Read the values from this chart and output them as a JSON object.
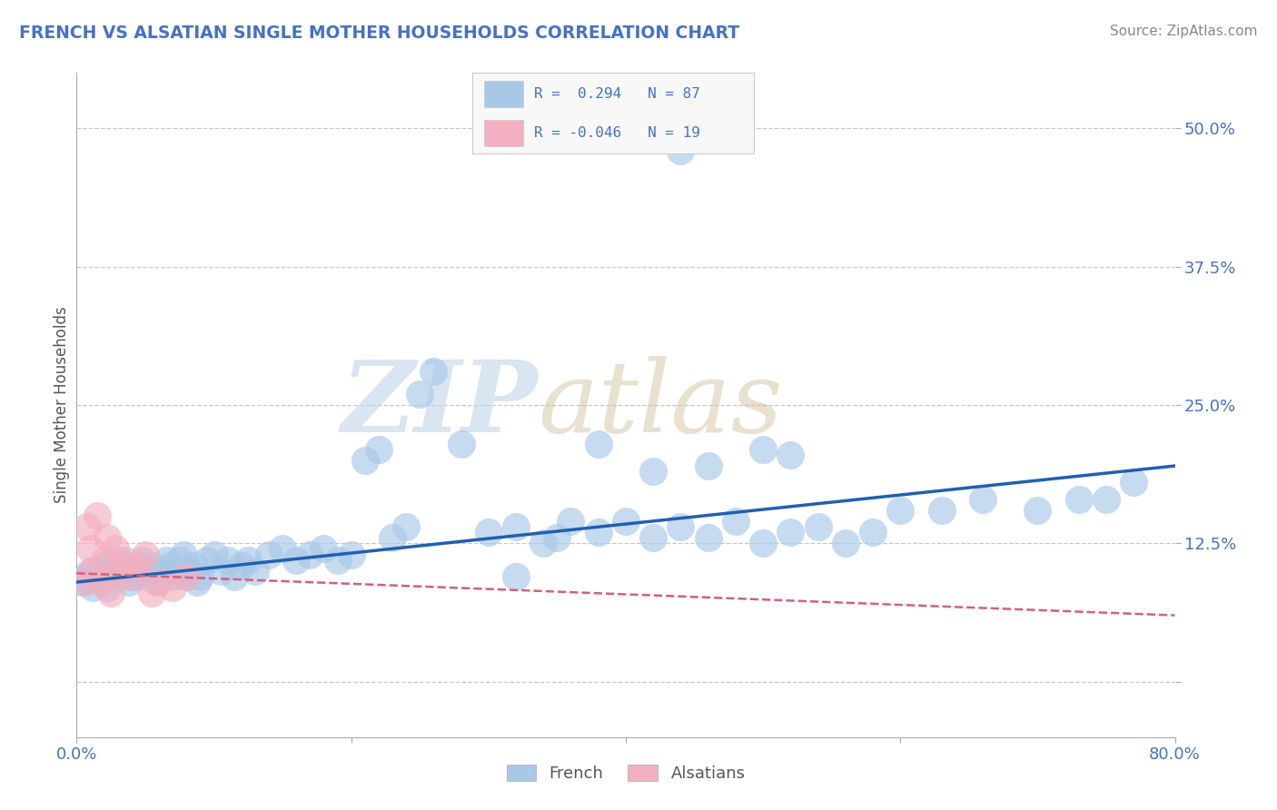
{
  "title": "FRENCH VS ALSATIAN SINGLE MOTHER HOUSEHOLDS CORRELATION CHART",
  "source": "Source: ZipAtlas.com",
  "ylabel": "Single Mother Households",
  "xlim": [
    0.0,
    0.8
  ],
  "ylim": [
    -0.05,
    0.55
  ],
  "ytick_vals": [
    0.0,
    0.125,
    0.25,
    0.375,
    0.5
  ],
  "ytick_labels": [
    "",
    "12.5%",
    "25.0%",
    "37.5%",
    "50.0%"
  ],
  "xtick_vals": [
    0.0,
    0.2,
    0.4,
    0.6,
    0.8
  ],
  "xtick_labels": [
    "0.0%",
    "",
    "",
    "",
    "80.0%"
  ],
  "french_R": 0.294,
  "french_N": 87,
  "alsatian_R": -0.046,
  "alsatian_N": 19,
  "french_color": "#a8c8e8",
  "alsatian_color": "#f4afc0",
  "french_line_color": "#2060b0",
  "alsatian_line_color": "#d06080",
  "background_color": "#ffffff",
  "legend_text_color": "#4472c4",
  "french_x": [
    0.005,
    0.008,
    0.01,
    0.012,
    0.015,
    0.018,
    0.02,
    0.022,
    0.025,
    0.028,
    0.03,
    0.032,
    0.035,
    0.038,
    0.04,
    0.042,
    0.045,
    0.048,
    0.05,
    0.052,
    0.055,
    0.058,
    0.06,
    0.062,
    0.065,
    0.068,
    0.07,
    0.072,
    0.075,
    0.078,
    0.08,
    0.082,
    0.085,
    0.088,
    0.09,
    0.095,
    0.1,
    0.105,
    0.11,
    0.115,
    0.12,
    0.125,
    0.13,
    0.14,
    0.15,
    0.16,
    0.17,
    0.18,
    0.19,
    0.2,
    0.21,
    0.22,
    0.23,
    0.24,
    0.25,
    0.26,
    0.28,
    0.3,
    0.32,
    0.34,
    0.35,
    0.36,
    0.38,
    0.4,
    0.42,
    0.44,
    0.46,
    0.48,
    0.5,
    0.52,
    0.54,
    0.56,
    0.58,
    0.6,
    0.63,
    0.66,
    0.7,
    0.73,
    0.75,
    0.77,
    0.44,
    0.38,
    0.42,
    0.5,
    0.52,
    0.46,
    0.32
  ],
  "french_y": [
    0.09,
    0.095,
    0.1,
    0.085,
    0.095,
    0.1,
    0.105,
    0.085,
    0.095,
    0.1,
    0.11,
    0.095,
    0.105,
    0.09,
    0.1,
    0.095,
    0.105,
    0.11,
    0.095,
    0.1,
    0.105,
    0.09,
    0.1,
    0.095,
    0.11,
    0.105,
    0.095,
    0.1,
    0.11,
    0.115,
    0.095,
    0.1,
    0.105,
    0.09,
    0.095,
    0.11,
    0.115,
    0.1,
    0.11,
    0.095,
    0.105,
    0.11,
    0.1,
    0.115,
    0.12,
    0.11,
    0.115,
    0.12,
    0.11,
    0.115,
    0.2,
    0.21,
    0.13,
    0.14,
    0.26,
    0.28,
    0.215,
    0.135,
    0.14,
    0.125,
    0.13,
    0.145,
    0.135,
    0.145,
    0.13,
    0.14,
    0.13,
    0.145,
    0.125,
    0.135,
    0.14,
    0.125,
    0.135,
    0.155,
    0.155,
    0.165,
    0.155,
    0.165,
    0.165,
    0.18,
    0.48,
    0.215,
    0.19,
    0.21,
    0.205,
    0.195,
    0.095
  ],
  "alsatian_x": [
    0.005,
    0.008,
    0.01,
    0.012,
    0.015,
    0.018,
    0.02,
    0.022,
    0.025,
    0.028,
    0.03,
    0.035,
    0.04,
    0.045,
    0.05,
    0.055,
    0.06,
    0.07,
    0.08
  ],
  "alsatian_y": [
    0.09,
    0.14,
    0.12,
    0.1,
    0.15,
    0.09,
    0.11,
    0.13,
    0.08,
    0.12,
    0.1,
    0.11,
    0.095,
    0.105,
    0.115,
    0.08,
    0.09,
    0.085,
    0.095
  ],
  "french_line_x0": 0.0,
  "french_line_x1": 0.8,
  "french_line_y0": 0.09,
  "french_line_y1": 0.195,
  "alsatian_line_x0": 0.0,
  "alsatian_line_x1": 0.8,
  "alsatian_line_y0": 0.098,
  "alsatian_line_y1": 0.06
}
